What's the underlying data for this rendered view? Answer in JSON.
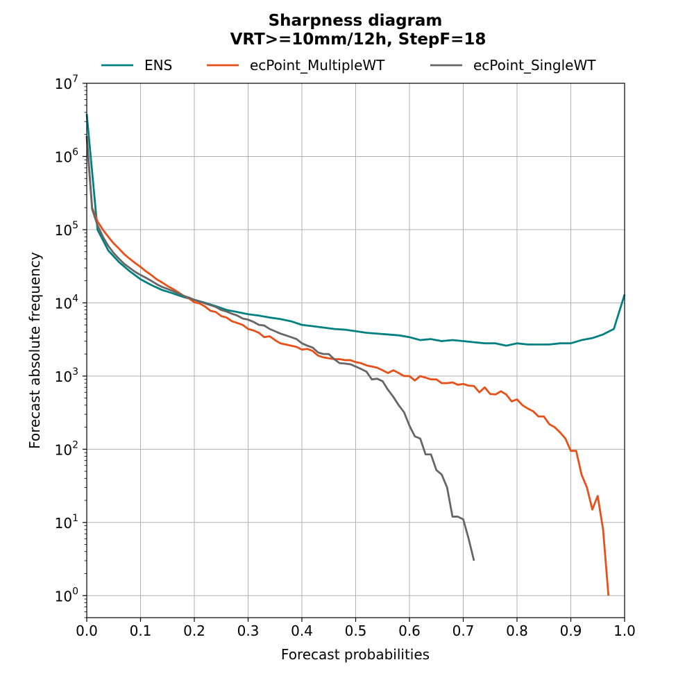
{
  "chart_data": {
    "type": "line",
    "title": "Sharpness diagram",
    "subtitle": "VRT>=10mm/12h, StepF=18",
    "xlabel": "Forecast probabilities",
    "ylabel": "Forecast absolute frequency",
    "xlim": [
      0,
      1
    ],
    "ylim": [
      0.5,
      10000000
    ],
    "yscale": "log",
    "grid": true,
    "legend_position": "top-center",
    "x_ticks": [
      {
        "value": 0.0,
        "label": "0.0"
      },
      {
        "value": 0.1,
        "label": "0.1"
      },
      {
        "value": 0.2,
        "label": "0.2"
      },
      {
        "value": 0.3,
        "label": "0.3"
      },
      {
        "value": 0.4,
        "label": "0.4"
      },
      {
        "value": 0.5,
        "label": "0.5"
      },
      {
        "value": 0.6,
        "label": "0.6"
      },
      {
        "value": 0.7,
        "label": "0.7"
      },
      {
        "value": 0.8,
        "label": "0.8"
      },
      {
        "value": 0.9,
        "label": "0.9"
      },
      {
        "value": 1.0,
        "label": "1.0"
      }
    ],
    "y_ticks": [
      {
        "value": 1,
        "base": "10",
        "exp": "0"
      },
      {
        "value": 10,
        "base": "10",
        "exp": "1"
      },
      {
        "value": 100,
        "base": "10",
        "exp": "2"
      },
      {
        "value": 1000,
        "base": "10",
        "exp": "3"
      },
      {
        "value": 10000,
        "base": "10",
        "exp": "4"
      },
      {
        "value": 100000,
        "base": "10",
        "exp": "5"
      },
      {
        "value": 1000000,
        "base": "10",
        "exp": "6"
      },
      {
        "value": 10000000,
        "base": "10",
        "exp": "7"
      }
    ],
    "series": [
      {
        "name": "ENS",
        "color": "#008080",
        "points": [
          [
            0.0,
            3800000
          ],
          [
            0.02,
            100000
          ],
          [
            0.04,
            52000
          ],
          [
            0.06,
            36000
          ],
          [
            0.08,
            27000
          ],
          [
            0.1,
            21000
          ],
          [
            0.12,
            17500
          ],
          [
            0.14,
            15000
          ],
          [
            0.16,
            13500
          ],
          [
            0.18,
            12000
          ],
          [
            0.2,
            11000
          ],
          [
            0.22,
            10000
          ],
          [
            0.24,
            9000
          ],
          [
            0.26,
            8000
          ],
          [
            0.28,
            7500
          ],
          [
            0.3,
            7000
          ],
          [
            0.32,
            6700
          ],
          [
            0.34,
            6300
          ],
          [
            0.36,
            6000
          ],
          [
            0.38,
            5600
          ],
          [
            0.4,
            5000
          ],
          [
            0.42,
            4800
          ],
          [
            0.44,
            4600
          ],
          [
            0.46,
            4400
          ],
          [
            0.48,
            4300
          ],
          [
            0.5,
            4100
          ],
          [
            0.52,
            3900
          ],
          [
            0.54,
            3800
          ],
          [
            0.56,
            3700
          ],
          [
            0.58,
            3600
          ],
          [
            0.6,
            3400
          ],
          [
            0.62,
            3100
          ],
          [
            0.64,
            3200
          ],
          [
            0.66,
            3000
          ],
          [
            0.68,
            3100
          ],
          [
            0.7,
            3000
          ],
          [
            0.72,
            2900
          ],
          [
            0.74,
            2800
          ],
          [
            0.76,
            2800
          ],
          [
            0.78,
            2600
          ],
          [
            0.8,
            2800
          ],
          [
            0.82,
            2700
          ],
          [
            0.84,
            2700
          ],
          [
            0.86,
            2700
          ],
          [
            0.88,
            2800
          ],
          [
            0.9,
            2800
          ],
          [
            0.92,
            3100
          ],
          [
            0.94,
            3300
          ],
          [
            0.96,
            3700
          ],
          [
            0.98,
            4400
          ],
          [
            1.0,
            13000
          ]
        ]
      },
      {
        "name": "ecPoint_MultipleWT",
        "color": "#e8501a",
        "points": [
          [
            0.0,
            1800000
          ],
          [
            0.01,
            200000
          ],
          [
            0.02,
            130000
          ],
          [
            0.03,
            100000
          ],
          [
            0.04,
            80000
          ],
          [
            0.05,
            65000
          ],
          [
            0.06,
            55000
          ],
          [
            0.07,
            46000
          ],
          [
            0.08,
            40000
          ],
          [
            0.09,
            35000
          ],
          [
            0.1,
            31000
          ],
          [
            0.11,
            27000
          ],
          [
            0.12,
            24000
          ],
          [
            0.13,
            21000
          ],
          [
            0.14,
            19000
          ],
          [
            0.15,
            17000
          ],
          [
            0.16,
            15500
          ],
          [
            0.17,
            14000
          ],
          [
            0.18,
            12500
          ],
          [
            0.19,
            11500
          ],
          [
            0.2,
            10200
          ],
          [
            0.21,
            9800
          ],
          [
            0.22,
            8900
          ],
          [
            0.23,
            7800
          ],
          [
            0.24,
            7500
          ],
          [
            0.25,
            6600
          ],
          [
            0.26,
            6300
          ],
          [
            0.27,
            5600
          ],
          [
            0.28,
            5300
          ],
          [
            0.29,
            5000
          ],
          [
            0.3,
            4400
          ],
          [
            0.31,
            4200
          ],
          [
            0.32,
            3900
          ],
          [
            0.33,
            3400
          ],
          [
            0.34,
            3500
          ],
          [
            0.35,
            3100
          ],
          [
            0.36,
            2800
          ],
          [
            0.37,
            2700
          ],
          [
            0.38,
            2600
          ],
          [
            0.39,
            2500
          ],
          [
            0.4,
            2300
          ],
          [
            0.41,
            2350
          ],
          [
            0.42,
            2200
          ],
          [
            0.43,
            1900
          ],
          [
            0.44,
            1800
          ],
          [
            0.45,
            1750
          ],
          [
            0.46,
            1700
          ],
          [
            0.47,
            1700
          ],
          [
            0.48,
            1650
          ],
          [
            0.49,
            1650
          ],
          [
            0.5,
            1550
          ],
          [
            0.51,
            1500
          ],
          [
            0.52,
            1400
          ],
          [
            0.53,
            1350
          ],
          [
            0.54,
            1300
          ],
          [
            0.55,
            1200
          ],
          [
            0.56,
            1100
          ],
          [
            0.57,
            1200
          ],
          [
            0.58,
            1100
          ],
          [
            0.59,
            1000
          ],
          [
            0.6,
            1000
          ],
          [
            0.61,
            870
          ],
          [
            0.62,
            1000
          ],
          [
            0.63,
            950
          ],
          [
            0.64,
            900
          ],
          [
            0.65,
            900
          ],
          [
            0.66,
            800
          ],
          [
            0.67,
            800
          ],
          [
            0.68,
            820
          ],
          [
            0.69,
            760
          ],
          [
            0.7,
            780
          ],
          [
            0.71,
            740
          ],
          [
            0.72,
            730
          ],
          [
            0.73,
            600
          ],
          [
            0.74,
            700
          ],
          [
            0.75,
            570
          ],
          [
            0.76,
            560
          ],
          [
            0.77,
            620
          ],
          [
            0.78,
            560
          ],
          [
            0.79,
            450
          ],
          [
            0.8,
            480
          ],
          [
            0.81,
            400
          ],
          [
            0.82,
            360
          ],
          [
            0.83,
            330
          ],
          [
            0.84,
            280
          ],
          [
            0.85,
            280
          ],
          [
            0.86,
            220
          ],
          [
            0.87,
            200
          ],
          [
            0.88,
            170
          ],
          [
            0.89,
            140
          ],
          [
            0.9,
            95
          ],
          [
            0.91,
            95
          ],
          [
            0.92,
            45
          ],
          [
            0.93,
            30
          ],
          [
            0.94,
            15
          ],
          [
            0.95,
            23
          ],
          [
            0.96,
            8
          ],
          [
            0.97,
            1
          ]
        ]
      },
      {
        "name": "ecPoint_SingleWT",
        "color": "#666666",
        "points": [
          [
            0.0,
            1900000
          ],
          [
            0.01,
            190000
          ],
          [
            0.02,
            115000
          ],
          [
            0.03,
            80000
          ],
          [
            0.04,
            60000
          ],
          [
            0.05,
            48000
          ],
          [
            0.06,
            40000
          ],
          [
            0.07,
            34000
          ],
          [
            0.08,
            30000
          ],
          [
            0.09,
            26500
          ],
          [
            0.1,
            24000
          ],
          [
            0.11,
            22000
          ],
          [
            0.12,
            20000
          ],
          [
            0.13,
            18000
          ],
          [
            0.14,
            16500
          ],
          [
            0.15,
            15500
          ],
          [
            0.16,
            14500
          ],
          [
            0.17,
            13500
          ],
          [
            0.18,
            12500
          ],
          [
            0.19,
            11800
          ],
          [
            0.2,
            11000
          ],
          [
            0.21,
            10400
          ],
          [
            0.22,
            9800
          ],
          [
            0.23,
            9300
          ],
          [
            0.24,
            8800
          ],
          [
            0.25,
            8000
          ],
          [
            0.26,
            7600
          ],
          [
            0.27,
            7100
          ],
          [
            0.28,
            6700
          ],
          [
            0.29,
            6100
          ],
          [
            0.3,
            5900
          ],
          [
            0.31,
            5500
          ],
          [
            0.32,
            5000
          ],
          [
            0.33,
            4900
          ],
          [
            0.34,
            4400
          ],
          [
            0.35,
            4100
          ],
          [
            0.36,
            3800
          ],
          [
            0.37,
            3600
          ],
          [
            0.38,
            3400
          ],
          [
            0.39,
            3200
          ],
          [
            0.4,
            2800
          ],
          [
            0.41,
            2600
          ],
          [
            0.42,
            2450
          ],
          [
            0.43,
            2100
          ],
          [
            0.44,
            2000
          ],
          [
            0.45,
            2000
          ],
          [
            0.46,
            1700
          ],
          [
            0.47,
            1500
          ],
          [
            0.48,
            1480
          ],
          [
            0.49,
            1450
          ],
          [
            0.5,
            1350
          ],
          [
            0.51,
            1250
          ],
          [
            0.52,
            1150
          ],
          [
            0.53,
            900
          ],
          [
            0.54,
            920
          ],
          [
            0.55,
            850
          ],
          [
            0.56,
            650
          ],
          [
            0.57,
            520
          ],
          [
            0.58,
            400
          ],
          [
            0.59,
            320
          ],
          [
            0.6,
            210
          ],
          [
            0.61,
            150
          ],
          [
            0.62,
            140
          ],
          [
            0.63,
            85
          ],
          [
            0.64,
            85
          ],
          [
            0.65,
            52
          ],
          [
            0.66,
            45
          ],
          [
            0.67,
            30
          ],
          [
            0.68,
            12
          ],
          [
            0.69,
            12
          ],
          [
            0.7,
            11
          ],
          [
            0.71,
            6
          ],
          [
            0.72,
            3
          ]
        ]
      }
    ]
  }
}
